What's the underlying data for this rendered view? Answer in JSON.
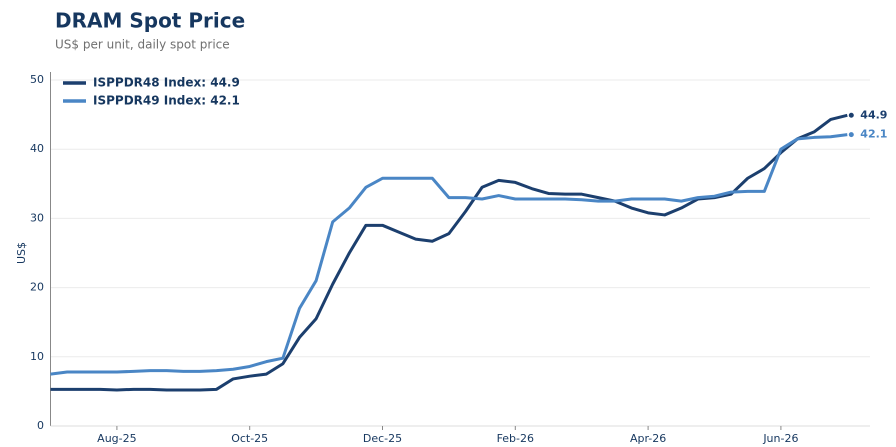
{
  "chart_data": {
    "type": "line",
    "title": "DRAM Spot Price",
    "subtitle": "US$ per unit, daily spot price",
    "y_label": "US$",
    "categories": [
      null,
      null,
      null,
      null,
      "Aug-25",
      null,
      null,
      null,
      null,
      null,
      null,
      null,
      "Oct-25",
      null,
      null,
      null,
      null,
      null,
      null,
      null,
      "Dec-25",
      null,
      null,
      null,
      null,
      null,
      null,
      null,
      "Feb-26",
      null,
      null,
      null,
      null,
      null,
      null,
      null,
      "Apr-26",
      null,
      null,
      null,
      null,
      null,
      null,
      null,
      "Jun-26",
      null,
      null,
      null,
      null
    ],
    "series": [
      {
        "name": "ISPPDR48 Index: 44.9",
        "color": "#1c3f6e",
        "values": [
          5.3,
          5.3,
          5.3,
          5.3,
          5.2,
          5.3,
          5.3,
          5.2,
          5.2,
          5.2,
          5.3,
          6.8,
          7.2,
          7.5,
          9,
          12.8,
          15.5,
          20.5,
          25,
          29,
          29,
          28,
          27,
          26.7,
          27.8,
          31,
          34.5,
          35.5,
          35.2,
          34.3,
          33.6,
          33.5,
          33.5,
          33,
          32.5,
          31.5,
          30.8,
          30.5,
          31.5,
          32.8,
          33,
          33.5,
          35.8,
          37.2,
          39.5,
          41.5,
          42.5,
          44.3,
          44.9
        ]
      },
      {
        "name": "ISPPDR49 Index: 42.1",
        "color": "#4a86c5",
        "values": [
          7.5,
          7.8,
          7.8,
          7.8,
          7.8,
          7.9,
          8,
          8,
          7.9,
          7.9,
          8,
          8.2,
          8.6,
          9.3,
          9.8,
          17,
          21,
          29.5,
          31.5,
          34.5,
          35.8,
          35.8,
          35.8,
          35.8,
          33,
          33,
          32.8,
          33.3,
          32.8,
          32.8,
          32.8,
          32.8,
          32.7,
          32.5,
          32.5,
          32.8,
          32.8,
          32.8,
          32.5,
          33,
          33.2,
          33.8,
          33.9,
          33.9,
          40,
          41.5,
          41.7,
          41.8,
          42.1
        ]
      }
    ],
    "ylim": [
      0,
      50
    ],
    "yticks": [
      0,
      10,
      20,
      30,
      40,
      50
    ],
    "grid": true,
    "legend": "upper left"
  }
}
